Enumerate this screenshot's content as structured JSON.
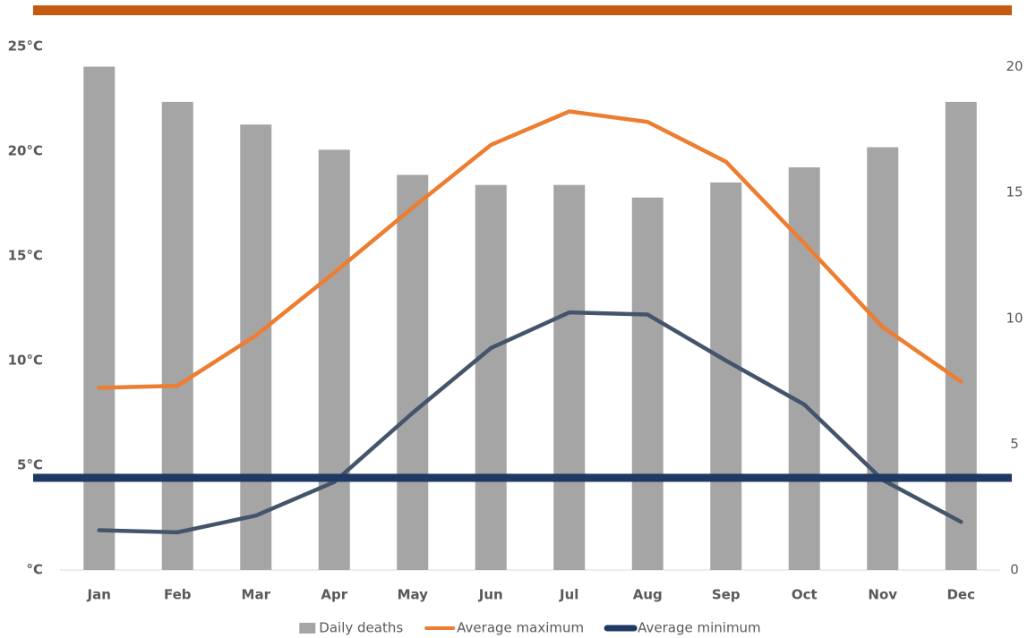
{
  "chart_data": {
    "type": "combo",
    "categories": [
      "Jan",
      "Feb",
      "Mar",
      "Apr",
      "May",
      "Jun",
      "Jul",
      "Aug",
      "Sep",
      "Oct",
      "Nov",
      "Dec"
    ],
    "series": [
      {
        "name": "Daily deaths",
        "type": "bar",
        "axis": "y2",
        "color": "#a5a5a5",
        "values": [
          20.0,
          18.6,
          17.7,
          16.7,
          15.7,
          15.3,
          15.3,
          14.8,
          15.4,
          16.0,
          16.8,
          18.6
        ]
      },
      {
        "name": "Average maximum",
        "type": "line",
        "color": "#ed7d31",
        "values": [
          8.7,
          8.8,
          11.2,
          14.2,
          17.3,
          20.3,
          21.9,
          21.4,
          19.5,
          15.6,
          11.6,
          9.0
        ]
      },
      {
        "name": "Average minimum",
        "type": "line",
        "color": "#44546a",
        "legend_color": "#1f3864",
        "values": [
          1.9,
          1.8,
          2.6,
          4.2,
          7.5,
          10.6,
          12.3,
          12.2,
          10.0,
          7.9,
          4.3,
          2.3
        ]
      }
    ],
    "reference_lines": [
      {
        "value": 4.4,
        "color": "#1f3864"
      }
    ],
    "ylim": [
      0,
      25
    ],
    "yticks": [
      {
        "value": 0,
        "label": "°C"
      },
      {
        "value": 5,
        "label": "5°C"
      },
      {
        "value": 10,
        "label": "10°C"
      },
      {
        "value": 15,
        "label": "15°C"
      },
      {
        "value": 20,
        "label": "20°C"
      },
      {
        "value": 25,
        "label": "25°C"
      }
    ],
    "y2lim": [
      0,
      20.8
    ],
    "y2ticks": [
      0,
      5,
      10,
      15,
      20
    ],
    "grid": false,
    "legend": "bottom"
  }
}
